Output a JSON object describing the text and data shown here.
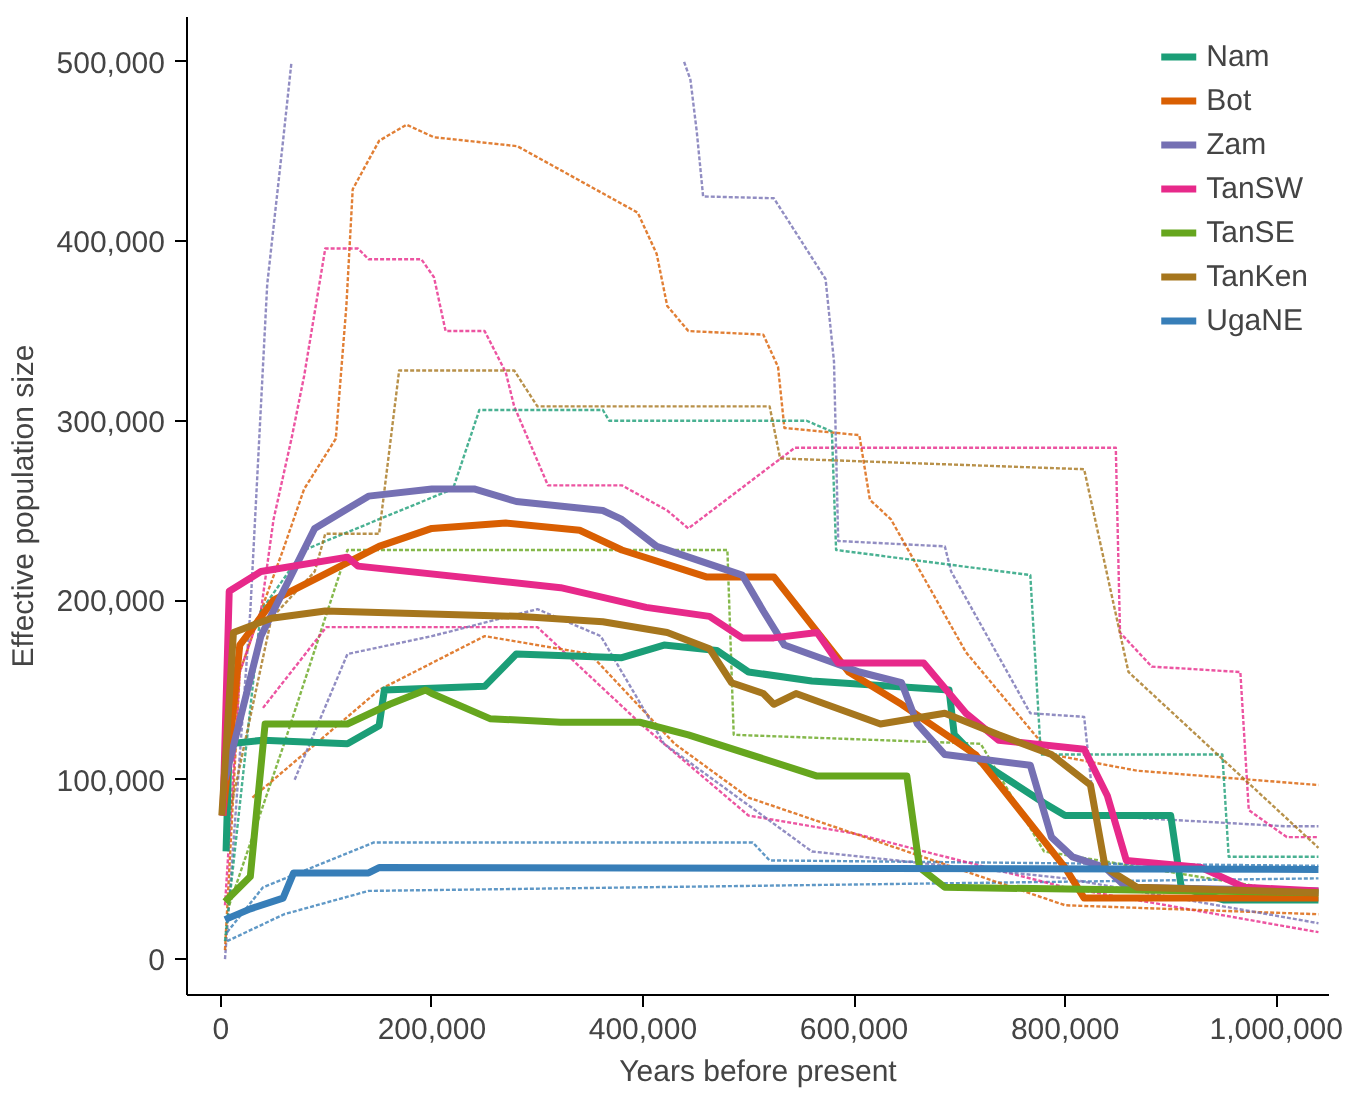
{
  "chart_data": {
    "type": "line",
    "xlabel": "Years before present",
    "ylabel": "Effective population size",
    "xlim": [
      -32000,
      1050000
    ],
    "ylim": [
      -20000,
      525000
    ],
    "xticks": [
      {
        "value": 0,
        "label": "0"
      },
      {
        "value": 200000,
        "label": "200,000"
      },
      {
        "value": 400000,
        "label": "400,000"
      },
      {
        "value": 600000,
        "label": "600,000"
      },
      {
        "value": 800000,
        "label": "800,000"
      },
      {
        "value": 1000000,
        "label": "1,000,000"
      }
    ],
    "yticks": [
      {
        "value": 0,
        "label": "0"
      },
      {
        "value": 100000,
        "label": "100,000"
      },
      {
        "value": 200000,
        "label": "200,000"
      },
      {
        "value": 300000,
        "label": "300,000"
      },
      {
        "value": 400000,
        "label": "400,000"
      },
      {
        "value": 500000,
        "label": "500,000"
      }
    ],
    "grid": false,
    "legend": "top right",
    "line_style": "solid",
    "series": [
      {
        "name": "Nam",
        "color": "#1b9e77",
        "x": [
          5000,
          8000,
          40000,
          120000,
          150000,
          155000,
          250000,
          280000,
          380000,
          420000,
          470000,
          500000,
          560000,
          690000,
          695000,
          720000,
          780000,
          800000,
          900000,
          910000,
          950000,
          1040000
        ],
        "values": [
          60000,
          120000,
          122000,
          120000,
          130000,
          150000,
          152000,
          170000,
          168000,
          175000,
          172000,
          160000,
          155000,
          150000,
          125000,
          110000,
          87000,
          80000,
          80000,
          40000,
          33000,
          33000
        ]
      },
      {
        "name": "Bot",
        "color": "#d95f02",
        "x": [
          2000,
          18000,
          50000,
          100000,
          150000,
          200000,
          270000,
          340000,
          380000,
          460000,
          524000,
          595000,
          645000,
          715000,
          800000,
          818000,
          1040000
        ],
        "values": [
          80000,
          175000,
          200000,
          215000,
          230000,
          240000,
          243000,
          239000,
          228000,
          213000,
          213000,
          160000,
          142000,
          114000,
          51000,
          34000,
          34000
        ]
      },
      {
        "name": "Zam",
        "color": "#7570b3",
        "x": [
          4000,
          38000,
          89000,
          140000,
          200000,
          240000,
          280000,
          362000,
          380000,
          413000,
          494000,
          514000,
          534000,
          605000,
          645000,
          660000,
          686000,
          767000,
          787000,
          807000,
          838000,
          858000,
          1040000
        ],
        "values": [
          100000,
          180000,
          240000,
          258000,
          262000,
          262000,
          255000,
          250000,
          245000,
          230000,
          214000,
          194000,
          175000,
          160000,
          154000,
          131000,
          114000,
          108000,
          68000,
          57000,
          51000,
          40000,
          38000
        ]
      },
      {
        "name": "TanSW",
        "color": "#e7298a",
        "x": [
          2000,
          8000,
          38000,
          120000,
          130000,
          322000,
          403000,
          463000,
          494000,
          524000,
          565000,
          585000,
          666000,
          706000,
          737000,
          818000,
          840000,
          858000,
          929000,
          970000,
          1040000
        ],
        "values": [
          80000,
          205000,
          216000,
          224000,
          219000,
          207000,
          196000,
          191000,
          179000,
          179000,
          182000,
          165000,
          165000,
          137000,
          122000,
          117000,
          91000,
          55000,
          51000,
          40000,
          38000
        ]
      },
      {
        "name": "TanSE",
        "color": "#66a61e",
        "x": [
          4000,
          28000,
          42000,
          120000,
          160000,
          194000,
          200000,
          255000,
          322000,
          397000,
          443000,
          565000,
          650000,
          662000,
          686000,
          1040000
        ],
        "values": [
          32000,
          46000,
          131000,
          131000,
          142000,
          150000,
          148000,
          134000,
          132000,
          132000,
          125000,
          102000,
          102000,
          51000,
          40000,
          37000
        ]
      },
      {
        "name": "TanKen",
        "color": "#a6761d",
        "x": [
          1000,
          12000,
          48000,
          99000,
          281000,
          362000,
          423000,
          463000,
          484000,
          514000,
          524000,
          545000,
          625000,
          686000,
          737000,
          787000,
          824000,
          838000,
          868000,
          1040000
        ],
        "values": [
          80000,
          182000,
          190000,
          194000,
          191000,
          188000,
          182000,
          173000,
          154000,
          148000,
          142000,
          148000,
          131000,
          137000,
          125000,
          114000,
          97000,
          51000,
          40000,
          37000
        ]
      },
      {
        "name": "UgaNE",
        "color": "#377eb8",
        "x": [
          4000,
          28000,
          59000,
          69000,
          140000,
          150000,
          1040000
        ],
        "values": [
          22000,
          28000,
          34000,
          48000,
          48000,
          51000,
          50000
        ]
      },
      {
        "color": "#7570b3",
        "line_style": "dotted",
        "x": [
          4000,
          28000,
          44000,
          59000,
          67000,
          72000,
          393000,
          439000,
          445000,
          451000,
          457000,
          524000,
          573000,
          581000,
          585000,
          686000,
          692000,
          767000,
          818000,
          828000,
          1010000,
          1040000
        ],
        "values": [
          0,
          194000,
          376000,
          456000,
          500000,
          null,
          null,
          500000,
          490000,
          461000,
          425000,
          424000,
          379000,
          333000,
          233000,
          230000,
          216000,
          137000,
          135000,
          80000,
          74000,
          74000
        ]
      },
      {
        "color": "#d95f02",
        "line_style": "dotted",
        "x": [
          4000,
          18000,
          38000,
          59000,
          79000,
          109000,
          119000,
          125000,
          150000,
          176000,
          202000,
          281000,
          395000,
          413000,
          423000,
          443000,
          514000,
          528000,
          534000,
          605000,
          615000,
          635000,
          706000,
          787000,
          868000,
          1040000
        ],
        "values": [
          5000,
          160000,
          194000,
          228000,
          262000,
          290000,
          364000,
          429000,
          456000,
          465000,
          458000,
          453000,
          416000,
          393000,
          364000,
          350000,
          348000,
          330000,
          296000,
          292000,
          256000,
          245000,
          171000,
          114000,
          105000,
          97000
        ]
      },
      {
        "color": "#e7298a",
        "line_style": "dotted",
        "x": [
          4000,
          18000,
          38000,
          50000,
          67000,
          79000,
          99000,
          130000,
          140000,
          190000,
          202000,
          213000,
          250000,
          270000,
          278000,
          310000,
          380000,
          423000,
          443000,
          544000,
          848000,
          852000,
          882000,
          966000,
          974000,
          1010000,
          1040000
        ],
        "values": [
          30000,
          160000,
          194000,
          245000,
          290000,
          325000,
          396000,
          396000,
          390000,
          390000,
          380000,
          350000,
          350000,
          327000,
          308000,
          264000,
          264000,
          250000,
          240000,
          285000,
          285000,
          182000,
          163000,
          160000,
          83000,
          68000,
          68000
        ]
      },
      {
        "color": "#1b9e77",
        "line_style": "dotted",
        "x": [
          4000,
          38000,
          79000,
          220000,
          245000,
          362000,
          368000,
          555000,
          579000,
          583000,
          767000,
          777000,
          949000,
          955000,
          1040000
        ],
        "values": [
          10000,
          194000,
          228000,
          262000,
          306000,
          306000,
          300000,
          300000,
          294000,
          228000,
          214000,
          114000,
          114000,
          57000,
          57000
        ]
      },
      {
        "color": "#a6761d",
        "line_style": "dotted",
        "x": [
          8000,
          48000,
          89000,
          99000,
          150000,
          169000,
          278000,
          300000,
          347000,
          520000,
          530000,
          818000,
          860000,
          1040000
        ],
        "values": [
          80000,
          190000,
          216000,
          237000,
          237000,
          328000,
          328000,
          308000,
          308000,
          308000,
          279000,
          273000,
          160000,
          62000
        ]
      },
      {
        "color": "#66a61e",
        "line_style": "dotted",
        "x": [
          8000,
          60000,
          120000,
          480000,
          486000,
          720000,
          780000,
          1040000
        ],
        "values": [
          30000,
          120000,
          228000,
          228000,
          125000,
          120000,
          60000,
          35000
        ]
      },
      {
        "color": "#377eb8",
        "line_style": "dotted",
        "x": [
          6000,
          40000,
          145000,
          504000,
          520000,
          1040000
        ],
        "values": [
          15000,
          40000,
          65000,
          65000,
          55000,
          52000
        ]
      },
      {
        "color": "#377eb8",
        "line_style": "dotted",
        "x": [
          6000,
          60000,
          140000,
          1040000
        ],
        "values": [
          10000,
          25000,
          38000,
          45000
        ]
      },
      {
        "color": "#e7298a",
        "line_style": "dotted",
        "x": [
          40000,
          100000,
          300000,
          400000,
          500000,
          600000,
          800000,
          1040000
        ],
        "values": [
          140000,
          185000,
          185000,
          130000,
          80000,
          70000,
          40000,
          15000
        ]
      },
      {
        "color": "#d95f02",
        "line_style": "dotted",
        "x": [
          30000,
          150000,
          250000,
          350000,
          430000,
          500000,
          650000,
          800000,
          1040000
        ],
        "values": [
          90000,
          150000,
          180000,
          170000,
          120000,
          90000,
          60000,
          30000,
          25000
        ]
      },
      {
        "color": "#7570b3",
        "line_style": "dotted",
        "x": [
          70000,
          120000,
          200000,
          300000,
          360000,
          420000,
          560000,
          800000,
          1040000
        ],
        "values": [
          100000,
          170000,
          180000,
          195000,
          180000,
          120000,
          60000,
          45000,
          20000
        ]
      }
    ]
  }
}
